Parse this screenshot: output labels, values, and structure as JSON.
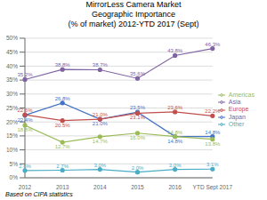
{
  "chart_data": {
    "type": "line",
    "title": "MirrorLess Camera Market\nGeographic Importance\n(% of market) 2012-YTD 2017 (Sept)",
    "annotations": [
      "Based on CIPA statistics"
    ],
    "categories": [
      "2012",
      "2013",
      "2014",
      "2015",
      "2016",
      "YTD Sept 2017"
    ],
    "series": [
      {
        "name": "Japan",
        "color": "#4472C4",
        "marker": "circle",
        "values": [
          22.4,
          26.8,
          21.0,
          23.5,
          14.8,
          14.8
        ],
        "value_labels": [
          "22.4%",
          "26.8%",
          "21.0%",
          "23.5%",
          "14.8%",
          "14.8%"
        ]
      },
      {
        "name": "Europe",
        "color": "#C0504D",
        "marker": "circle",
        "values": [
          22.6,
          20.5,
          21.0,
          23.1,
          23.6,
          22.2
        ],
        "value_labels": [
          "22.6%",
          "20.5%",
          "21.0%",
          "23.1%",
          "23.6%",
          "22.2%"
        ]
      },
      {
        "name": "Americas",
        "color": "#9BBB59",
        "marker": "circle",
        "values": [
          18.8,
          12.7,
          14.7,
          16.0,
          14.8,
          13.8
        ],
        "value_labels": [
          "18.8%",
          "12.7%",
          "14.7%",
          "16.0%",
          "14.8%",
          "13.8%"
        ]
      },
      {
        "name": "Asia",
        "color": "#8064A2",
        "marker": "circle",
        "values": [
          35.2,
          38.8,
          38.7,
          35.6,
          43.8,
          46.3
        ],
        "value_labels": [
          "35.2%",
          "38.8%",
          "38.7%",
          "35.6%",
          "43.8%",
          "46.3%"
        ]
      },
      {
        "name": "Other",
        "color": "#4BACC6",
        "marker": "circle",
        "values": [
          2.6,
          2.7,
          3.0,
          2.0,
          3.0,
          3.1
        ],
        "value_labels": [
          "2.6%",
          "2.7%",
          "3.0%",
          "2.0%",
          "3.0%",
          "3.1%"
        ]
      }
    ],
    "ylim": [
      0,
      50
    ],
    "yticks": [
      {
        "value": 0,
        "label": "0%"
      },
      {
        "value": 5,
        "label": "5%"
      },
      {
        "value": 10,
        "label": "10%"
      },
      {
        "value": 15,
        "label": "15%"
      },
      {
        "value": 20,
        "label": "20%"
      },
      {
        "value": 25,
        "label": "25%"
      },
      {
        "value": 30,
        "label": "30%"
      },
      {
        "value": 35,
        "label": "35%"
      },
      {
        "value": 40,
        "label": "40%"
      },
      {
        "value": 45,
        "label": "45%"
      },
      {
        "value": 50,
        "label": "50%"
      }
    ],
    "grid": true,
    "legend": "right",
    "data_labels": true
  }
}
